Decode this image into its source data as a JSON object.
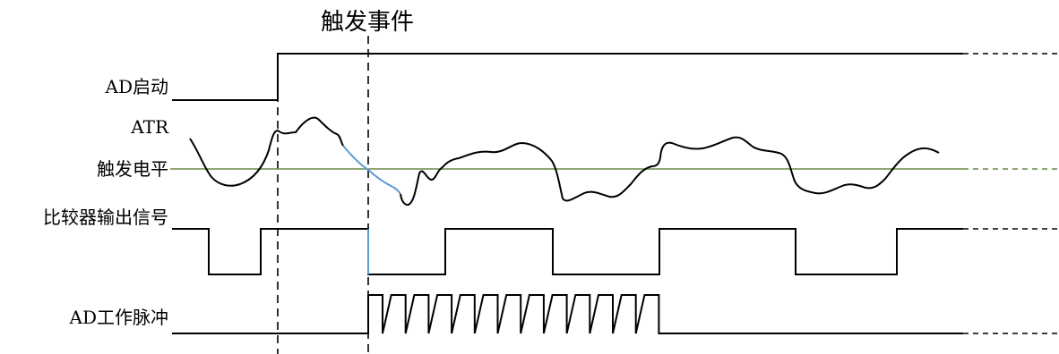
{
  "title": "触发事件",
  "labels": {
    "ad_start": "AD启动",
    "atr": "ATR",
    "trigger_level": "触发电平",
    "comparator_output": "比较器输出信号",
    "ad_work_pulse": "AD工作脉冲"
  },
  "colors": {
    "signal": "#000000",
    "trigger_level_line": "#6b8a47",
    "highlight": "#5b9bd5"
  }
}
